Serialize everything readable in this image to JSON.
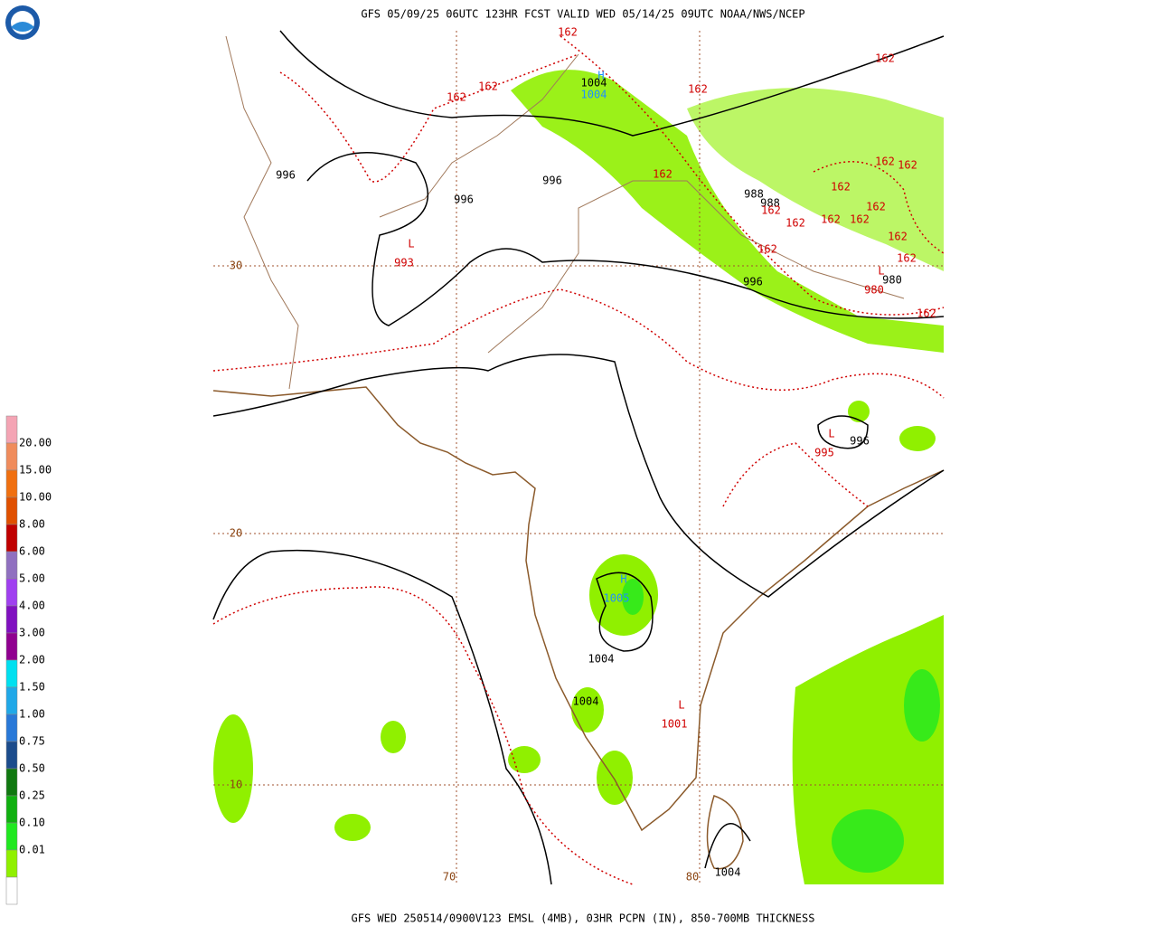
{
  "header": {
    "title": "GFS 05/09/25 06UTC 123HR FCST VALID WED 05/14/25 09UTC NOAA/NWS/NCEP"
  },
  "legend": {
    "labels": [
      "20.00",
      "15.00",
      "10.00",
      "8.00",
      "6.00",
      "5.00",
      "4.00",
      "3.00",
      "2.00",
      "1.50",
      "1.00",
      "0.75",
      "0.50",
      "0.25",
      "0.10",
      "0.01"
    ],
    "colors": [
      "#f4a4b4",
      "#f08c5c",
      "#f07010",
      "#e05000",
      "#c00000",
      "#9070c0",
      "#a040f0",
      "#8010c0",
      "#900090",
      "#00e0f0",
      "#20a8e8",
      "#2878d8",
      "#1c4c8c",
      "#107810",
      "#10b010",
      "#20e820",
      "#90f000",
      "#ffffff"
    ]
  },
  "map": {
    "grid_labels": [
      "30",
      "20",
      "10",
      "70",
      "80"
    ],
    "isobar_labels": [
      996,
      996,
      996,
      1004,
      988,
      988,
      996,
      980,
      996,
      1004,
      1004,
      1004
    ],
    "thickness_labels": [
      162,
      162,
      162,
      162,
      162,
      162,
      162,
      162,
      162,
      162,
      162,
      162,
      162,
      162,
      162,
      162,
      162,
      162
    ],
    "centers": [
      {
        "symbol": "L",
        "value": 993
      },
      {
        "symbol": "L",
        "value": 995
      },
      {
        "symbol": "L",
        "value": 1001
      },
      {
        "symbol": "L",
        "value": 980
      },
      {
        "symbol": "H",
        "value": 1004
      },
      {
        "symbol": "H",
        "value": 1005
      }
    ]
  },
  "footer": {
    "text": "GFS WED 250514/0900V123 EMSL (4MB), 03HR PCPN (IN), 850-700MB THICKNESS"
  }
}
